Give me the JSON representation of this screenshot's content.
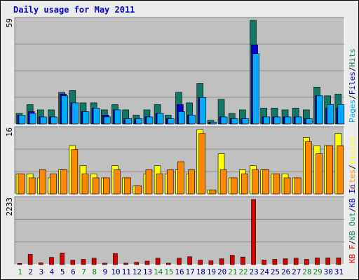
{
  "title": "Daily usage for May 2011",
  "colors": {
    "hits": "#117766",
    "files": "#0000cc",
    "pages": "#00aaff",
    "visits": "#ffff00",
    "sites": "#ff8800",
    "kbin": "#0000cc",
    "kbout": "#117766",
    "kbf": "#dd0000",
    "panel_bg": "#c0c0c0",
    "day_weekend": "#118822",
    "day_weekday": "#000080"
  },
  "chart_data": [
    {
      "type": "bar",
      "name": "hits-files-pages",
      "ymax_label": "59",
      "ylim": [
        0,
        59
      ],
      "legend": [
        {
          "text": "Pages",
          "color": "#00aaff"
        },
        {
          "text": "Files",
          "color": "#0000cc"
        },
        {
          "text": "Hits",
          "color": "#117766"
        }
      ],
      "categories": [
        "1",
        "2",
        "3",
        "4",
        "5",
        "6",
        "7",
        "8",
        "9",
        "10",
        "11",
        "12",
        "13",
        "14",
        "15",
        "16",
        "17",
        "18",
        "19",
        "20",
        "21",
        "22",
        "23",
        "24",
        "25",
        "26",
        "27",
        "28",
        "29",
        "30",
        "31"
      ],
      "series": [
        {
          "name": "Hits",
          "values": [
            6,
            11,
            8,
            8,
            18,
            19,
            12,
            12,
            8,
            11,
            8,
            5,
            8,
            11,
            5,
            18,
            12,
            23,
            2,
            14,
            6,
            8,
            59,
            9,
            9,
            8,
            9,
            8,
            21,
            16,
            17
          ]
        },
        {
          "name": "Files",
          "values": [
            5,
            7,
            4,
            4,
            17,
            12,
            7,
            9,
            5,
            8,
            3,
            3,
            4,
            6,
            3,
            11,
            5,
            15,
            1,
            4,
            3,
            3,
            45,
            4,
            4,
            4,
            4,
            3,
            16,
            9,
            9
          ]
        },
        {
          "name": "Pages",
          "values": [
            5,
            6,
            4,
            4,
            16,
            12,
            7,
            9,
            4,
            8,
            3,
            3,
            4,
            6,
            3,
            7,
            5,
            15,
            1,
            4,
            3,
            3,
            40,
            4,
            4,
            4,
            4,
            3,
            16,
            11,
            11
          ]
        }
      ]
    },
    {
      "type": "bar",
      "name": "visits-sites",
      "ymax_label": "16",
      "ylim": [
        0,
        16
      ],
      "legend": [
        {
          "text": "Sites",
          "color": "#ff8800"
        },
        {
          "text": "Visits",
          "color": "#ffff00"
        }
      ],
      "categories": [
        "1",
        "2",
        "3",
        "4",
        "5",
        "6",
        "7",
        "8",
        "9",
        "10",
        "11",
        "12",
        "13",
        "14",
        "15",
        "16",
        "17",
        "18",
        "19",
        "20",
        "21",
        "22",
        "23",
        "24",
        "25",
        "26",
        "27",
        "28",
        "29",
        "30",
        "31"
      ],
      "series": [
        {
          "name": "Visits",
          "values": [
            5,
            5,
            4,
            4,
            6,
            12,
            7,
            5,
            4,
            7,
            4,
            2,
            5,
            7,
            5,
            6,
            5,
            16,
            1,
            10,
            4,
            6,
            7,
            6,
            5,
            5,
            4,
            14,
            12,
            12,
            15
          ]
        },
        {
          "name": "Sites",
          "values": [
            5,
            4,
            6,
            5,
            6,
            11,
            5,
            4,
            4,
            6,
            4,
            2,
            6,
            5,
            6,
            8,
            6,
            15,
            1,
            6,
            4,
            5,
            6,
            6,
            5,
            4,
            4,
            13,
            10,
            12,
            12
          ]
        }
      ]
    },
    {
      "type": "bar",
      "name": "kbytes",
      "ymax_label": "2233",
      "ylim": [
        0,
        2233
      ],
      "legend": [
        {
          "text": "KB F",
          "color": "#dd0000"
        },
        {
          "text": "KB Out",
          "color": "#117766"
        },
        {
          "text": "KB In",
          "color": "#0000cc"
        }
      ],
      "categories": [
        "1",
        "2",
        "3",
        "4",
        "5",
        "6",
        "7",
        "8",
        "9",
        "10",
        "11",
        "12",
        "13",
        "14",
        "15",
        "16",
        "17",
        "18",
        "19",
        "20",
        "21",
        "22",
        "23",
        "24",
        "25",
        "26",
        "27",
        "28",
        "29",
        "30",
        "31"
      ],
      "series": [
        {
          "name": "KB F",
          "values": [
            40,
            350,
            60,
            250,
            400,
            150,
            180,
            220,
            50,
            380,
            50,
            80,
            120,
            220,
            50,
            220,
            270,
            150,
            130,
            200,
            320,
            260,
            2233,
            160,
            180,
            200,
            220,
            180,
            230,
            230,
            230
          ]
        }
      ]
    }
  ],
  "weekend_days": [
    "1",
    "7",
    "8",
    "14",
    "15",
    "21",
    "22",
    "28",
    "29"
  ]
}
